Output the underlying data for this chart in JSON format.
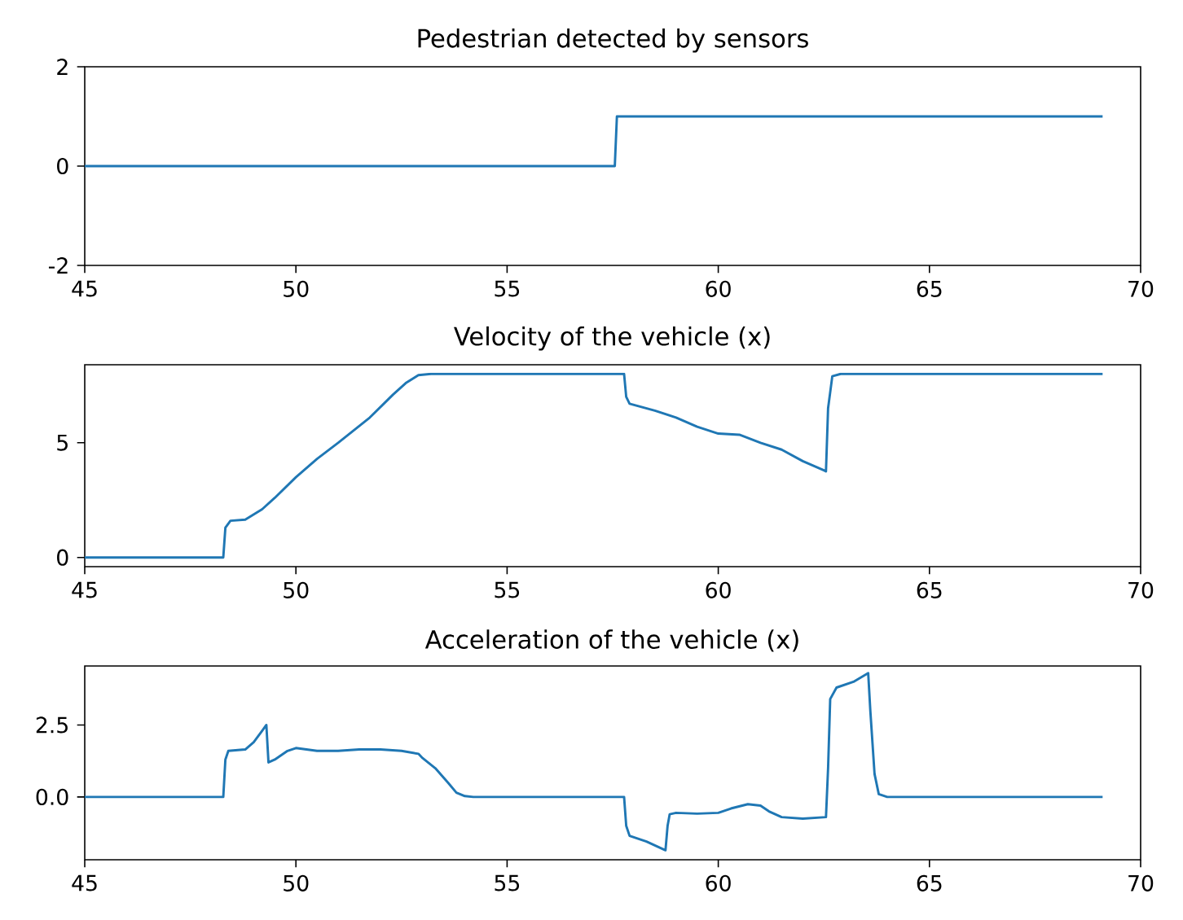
{
  "chart_data": [
    {
      "type": "line",
      "title": "Pedestrian detected by sensors",
      "color": "#1f77b4",
      "x": [
        45,
        57.55,
        57.6,
        69.1
      ],
      "values": [
        0,
        0,
        1,
        1
      ],
      "xlim": [
        45,
        70
      ],
      "xticks": [
        45,
        50,
        55,
        60,
        65,
        70
      ],
      "ylim": [
        -2,
        2
      ],
      "yticks": [
        -2,
        0,
        2
      ]
    },
    {
      "type": "line",
      "title": "Velocity of the vehicle (x)",
      "color": "#1f77b4",
      "x": [
        45,
        48.28,
        48.33,
        48.45,
        48.8,
        49.2,
        49.5,
        50,
        50.5,
        51,
        51.75,
        52.3,
        52.6,
        52.9,
        53.2,
        57.77,
        57.82,
        57.9,
        58.5,
        59,
        59.5,
        60,
        60.5,
        61,
        61.5,
        62,
        62.5,
        62.55,
        62.6,
        62.7,
        62.9,
        69.1
      ],
      "values": [
        0,
        0,
        1.3,
        1.6,
        1.65,
        2.1,
        2.6,
        3.5,
        4.3,
        5.0,
        6.1,
        7.1,
        7.6,
        7.95,
        8.0,
        8.0,
        7.0,
        6.7,
        6.4,
        6.1,
        5.7,
        5.4,
        5.35,
        5.0,
        4.7,
        4.2,
        3.8,
        3.75,
        6.5,
        7.9,
        8.0,
        8.0
      ],
      "xlim": [
        45,
        70
      ],
      "xticks": [
        45,
        50,
        55,
        60,
        65,
        70
      ],
      "ylim": [
        -0.4,
        8.4
      ],
      "yticks": [
        0,
        5
      ]
    },
    {
      "type": "line",
      "title": "Acceleration of the vehicle (x)",
      "color": "#1f77b4",
      "x": [
        45,
        48.28,
        48.33,
        48.4,
        48.8,
        49.0,
        49.2,
        49.3,
        49.35,
        49.5,
        49.8,
        50,
        50.5,
        51,
        51.5,
        52,
        52.5,
        52.9,
        53.0,
        53.3,
        53.6,
        53.8,
        54.0,
        54.2,
        57.77,
        57.82,
        57.9,
        58.3,
        58.75,
        58.8,
        58.85,
        59.0,
        59.5,
        60,
        60.3,
        60.7,
        61,
        61.2,
        61.5,
        62,
        62.55,
        62.6,
        62.65,
        62.8,
        63.2,
        63.55,
        63.6,
        63.7,
        63.8,
        64,
        69.1
      ],
      "values": [
        0,
        0,
        1.3,
        1.6,
        1.65,
        1.9,
        2.3,
        2.5,
        1.2,
        1.3,
        1.6,
        1.7,
        1.6,
        1.6,
        1.65,
        1.65,
        1.6,
        1.5,
        1.35,
        1.0,
        0.5,
        0.15,
        0.03,
        0,
        0,
        -1.0,
        -1.35,
        -1.55,
        -1.85,
        -1.0,
        -0.6,
        -0.55,
        -0.58,
        -0.55,
        -0.4,
        -0.25,
        -0.3,
        -0.5,
        -0.7,
        -0.75,
        -0.7,
        1.0,
        3.4,
        3.8,
        4.0,
        4.3,
        3.0,
        0.8,
        0.1,
        0,
        0
      ],
      "xlim": [
        45,
        70
      ],
      "xticks": [
        45,
        50,
        55,
        60,
        65,
        70
      ],
      "ylim": [
        -2.18,
        4.55
      ],
      "yticks": [
        {
          "value": 0,
          "label": "0.0"
        },
        {
          "value": 2.5,
          "label": "2.5"
        }
      ]
    }
  ]
}
